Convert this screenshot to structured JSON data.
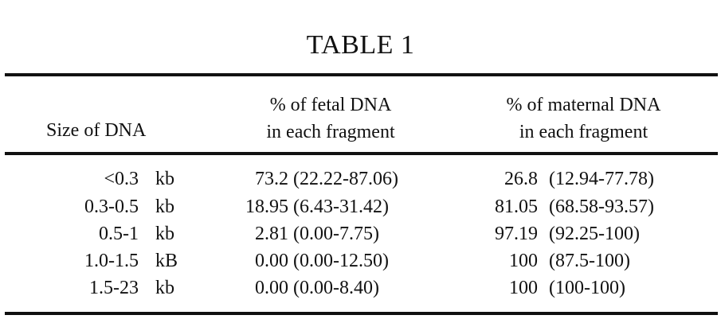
{
  "table": {
    "title": "TABLE 1",
    "headers": {
      "size": "Size of DNA",
      "fetal_line1": "% of fetal DNA",
      "fetal_line2": "in each fragment",
      "maternal_line1": "% of maternal DNA",
      "maternal_line2": "in each fragment"
    },
    "rows": [
      {
        "size": "<0.3",
        "unit": "kb",
        "fetal": "73.2",
        "fetal_range": "(22.22-87.06)",
        "maternal": "26.8",
        "maternal_range": "(12.94-77.78)"
      },
      {
        "size": "0.3-0.5",
        "unit": "kb",
        "fetal": "18.95",
        "fetal_range": "(6.43-31.42)",
        "maternal": "81.05",
        "maternal_range": "(68.58-93.57)"
      },
      {
        "size": "0.5-1",
        "unit": "kb",
        "fetal": "2.81",
        "fetal_range": "(0.00-7.75)",
        "maternal": "97.19",
        "maternal_range": "(92.25-100)"
      },
      {
        "size": "1.0-1.5",
        "unit": "kB",
        "fetal": "0.00",
        "fetal_range": "(0.00-12.50)",
        "maternal": "100",
        "maternal_range": "(87.5-100)"
      },
      {
        "size": "1.5-23",
        "unit": "kb",
        "fetal": "0.00",
        "fetal_range": "(0.00-8.40)",
        "maternal": "100",
        "maternal_range": "(100-100)"
      }
    ]
  }
}
